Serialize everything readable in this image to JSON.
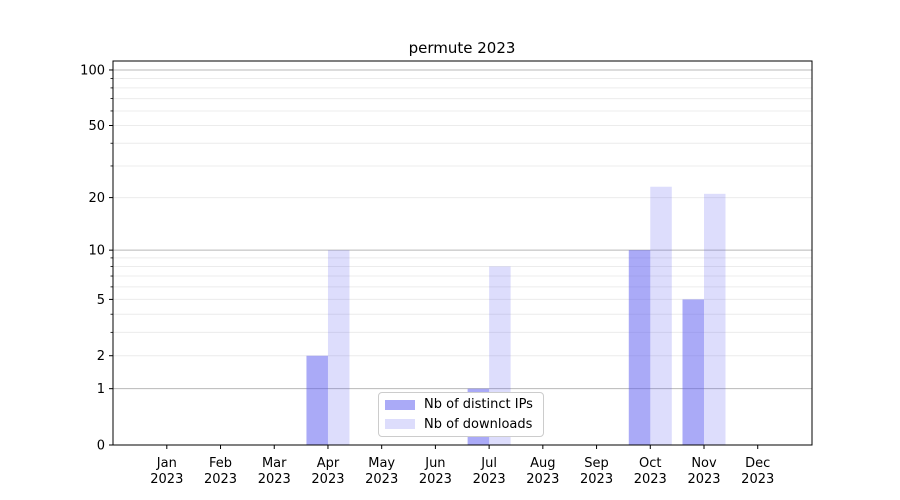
{
  "page": {
    "background": "#ffffff"
  },
  "chart_data": {
    "type": "bar",
    "title": "permute 2023",
    "categories": [
      "Jan",
      "Feb",
      "Mar",
      "Apr",
      "May",
      "Jun",
      "Jul",
      "Aug",
      "Sep",
      "Oct",
      "Nov",
      "Dec"
    ],
    "category_year": "2023",
    "series": [
      {
        "name": "Nb of distinct IPs",
        "color": "rgba(85,85,240,0.5)",
        "values": [
          0,
          0,
          0,
          2,
          0,
          0,
          1,
          0,
          0,
          10,
          5,
          0
        ]
      },
      {
        "name": "Nb of downloads",
        "color": "rgba(85,85,240,0.2)",
        "values": [
          0,
          0,
          0,
          10,
          0,
          0,
          8,
          0,
          0,
          23,
          21,
          0
        ]
      }
    ],
    "scale": "log1p",
    "ylim": [
      0,
      113
    ],
    "y_ticks": [
      0,
      1,
      2,
      5,
      10,
      20,
      50,
      100
    ],
    "y_minor_ticks": [
      3,
      4,
      6,
      7,
      8,
      9,
      30,
      40,
      60,
      70,
      80,
      90
    ],
    "grid": true,
    "legend_position": "lower center",
    "colors": {
      "decade_grid": "#b8b8b8",
      "minor_grid": "#ececec",
      "axis": "#000000"
    }
  }
}
